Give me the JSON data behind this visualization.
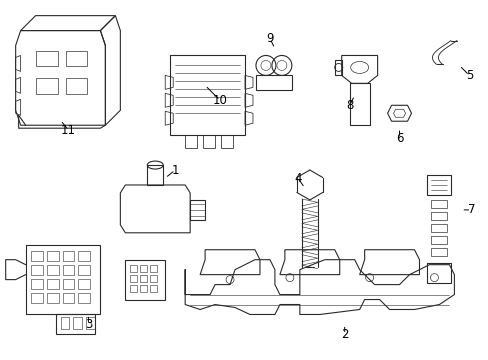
{
  "background_color": "#ffffff",
  "line_color": "#2a2a2a",
  "label_color": "#000000",
  "figsize": [
    4.89,
    3.6
  ],
  "dpi": 100,
  "lw": 0.8
}
